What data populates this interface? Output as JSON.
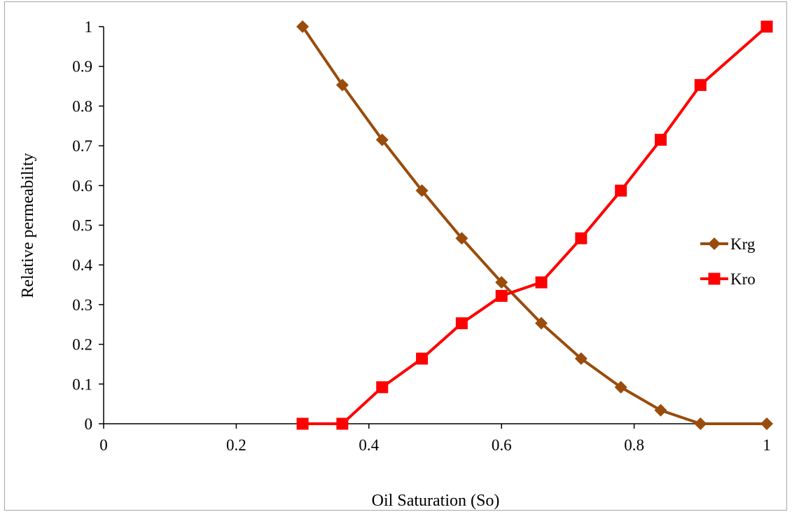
{
  "chart_data": {
    "type": "line",
    "title": "",
    "xlabel": "Oil Saturation  (So)",
    "ylabel": "Relative  permeability",
    "xlim": [
      0,
      1
    ],
    "ylim": [
      0,
      1
    ],
    "x_ticks": [
      "0",
      "0.2",
      "0.4",
      "0.6",
      "0.8",
      "1"
    ],
    "y_ticks": [
      "0",
      "0.1",
      "0.2",
      "0.3",
      "0.4",
      "0.5",
      "0.6",
      "0.7",
      "0.8",
      "0.9",
      "1"
    ],
    "grid": false,
    "legend_position": "right",
    "series": [
      {
        "name": "Krg",
        "color": "#994c0c",
        "marker": "diamond",
        "x": [
          0.3,
          0.36,
          0.42,
          0.48,
          0.54,
          0.6,
          0.66,
          0.72,
          0.78,
          0.84,
          0.9,
          1.0
        ],
        "y": [
          1.0,
          0.853,
          0.715,
          0.587,
          0.467,
          0.356,
          0.253,
          0.164,
          0.092,
          0.034,
          0.0,
          0.0
        ]
      },
      {
        "name": "Kro",
        "color": "#ff0000",
        "marker": "square",
        "x": [
          0.3,
          0.36,
          0.42,
          0.48,
          0.54,
          0.6,
          0.66,
          0.72,
          0.78,
          0.84,
          0.9,
          1.0
        ],
        "y": [
          0.0,
          0.0,
          0.092,
          0.164,
          0.253,
          0.322,
          0.356,
          0.467,
          0.587,
          0.715,
          0.853,
          1.0
        ]
      }
    ]
  }
}
